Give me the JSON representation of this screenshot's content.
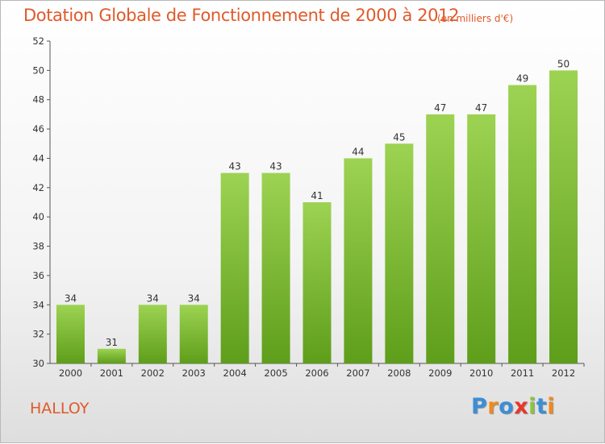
{
  "title": "Dotation Globale de Fonctionnement de 2000 à 2012",
  "unit_note": "(en milliers d'€)",
  "commune": "HALLOY",
  "logo": {
    "letters": [
      "P",
      "r",
      "o",
      "x",
      "i",
      "t",
      "i"
    ],
    "colors": [
      "#3a8fd6",
      "#f08a1c",
      "#3a8fd6",
      "#e8372b",
      "#8bc43f",
      "#3a8fd6",
      "#f08a1c"
    ]
  },
  "colors": {
    "title": "#e05a2a",
    "bar_top": "#9dd352",
    "bar_bottom": "#5e9e1a",
    "axis": "#555555",
    "grid": "#d0d0d0"
  },
  "chart_data": {
    "type": "bar",
    "title": "Dotation Globale de Fonctionnement de 2000 à 2012",
    "xlabel": "",
    "ylabel": "",
    "categories": [
      "2000",
      "2001",
      "2002",
      "2003",
      "2004",
      "2005",
      "2006",
      "2007",
      "2008",
      "2009",
      "2010",
      "2011",
      "2012"
    ],
    "values": [
      34,
      31,
      34,
      34,
      43,
      43,
      41,
      44,
      45,
      47,
      47,
      49,
      50
    ],
    "ylim": [
      30,
      52
    ],
    "yticks": [
      30,
      32,
      34,
      36,
      38,
      40,
      42,
      44,
      46,
      48,
      50,
      52
    ],
    "grid": false,
    "data_labels": true
  }
}
